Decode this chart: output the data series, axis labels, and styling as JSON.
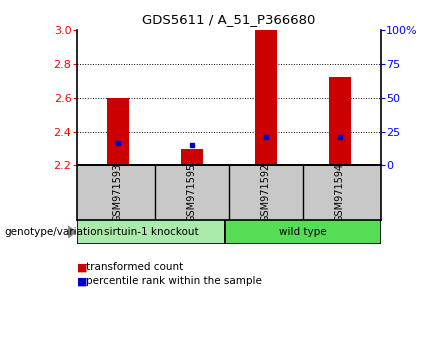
{
  "title": "GDS5611 / A_51_P366680",
  "samples": [
    "GSM971593",
    "GSM971595",
    "GSM971592",
    "GSM971594"
  ],
  "transformed_counts": [
    2.6,
    2.3,
    3.0,
    2.72
  ],
  "percentile_ranks": [
    2.33,
    2.32,
    2.37,
    2.37
  ],
  "ylim_left": [
    2.2,
    3.0
  ],
  "yticks_left": [
    2.2,
    2.4,
    2.6,
    2.8,
    3.0
  ],
  "yticks_right": [
    0,
    25,
    50,
    75,
    100
  ],
  "ytick_labels_right": [
    "0",
    "25",
    "50",
    "75",
    "100%"
  ],
  "bar_color": "#cc0000",
  "dot_color": "#0000cc",
  "group1_label": "sirtuin-1 knockout",
  "group1_color": "#aaeaaa",
  "group2_label": "wild type",
  "group2_color": "#55dd55",
  "group_label_text": "genotype/variation",
  "legend_items": [
    {
      "label": "transformed count",
      "color": "#cc0000"
    },
    {
      "label": "percentile rank within the sample",
      "color": "#0000cc"
    }
  ],
  "sample_bg_color": "#c8c8c8",
  "bar_width": 0.3,
  "grid_vals": [
    2.4,
    2.6,
    2.8
  ]
}
